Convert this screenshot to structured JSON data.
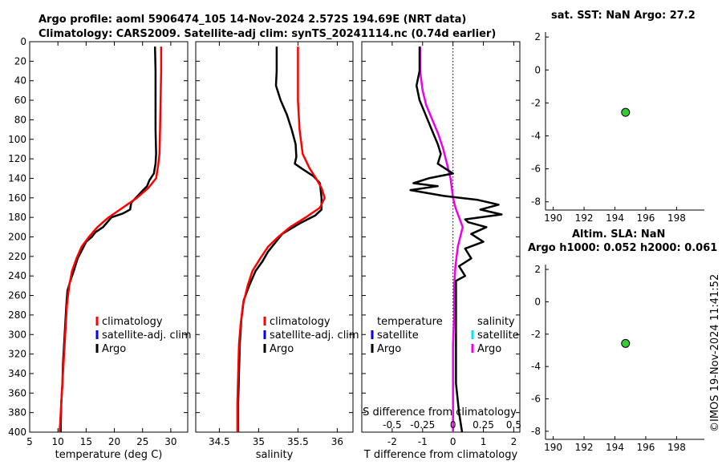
{
  "title_line1": "Argo profile: aoml 5906474_105 14-Nov-2024 2.572S 194.69E (NRT data)",
  "title_line2": "Climatology: CARS2009. Satellite-adj clim: synTS_20241114.nc (0.74d earlier)",
  "footer": "©IMOS 19-Nov-2024 11:41:52",
  "colors": {
    "climatology": "#ff0000",
    "satellite": "#0000ff",
    "satellite_s": "#00e5ee",
    "argo": "#000000",
    "argo_s": "#ee00ee",
    "dot": "#33cc33"
  },
  "chart_data": [
    {
      "id": "temperature",
      "type": "line",
      "xlabel": "temperature (deg C)",
      "ylabel": "",
      "xlim": [
        5,
        33
      ],
      "ylim": [
        400,
        0
      ],
      "xticks": [
        5,
        10,
        15,
        20,
        25,
        30
      ],
      "yticks": [
        0,
        20,
        40,
        60,
        80,
        100,
        120,
        140,
        160,
        180,
        200,
        220,
        240,
        260,
        280,
        300,
        320,
        340,
        360,
        380,
        400
      ],
      "legend": [
        "climatology",
        "satellite-adj. clim",
        "Argo"
      ],
      "series": [
        {
          "name": "climatology",
          "points": [
            [
              28.3,
              5
            ],
            [
              28.3,
              30
            ],
            [
              28.2,
              60
            ],
            [
              28.1,
              90
            ],
            [
              28.0,
              115
            ],
            [
              27.8,
              125
            ],
            [
              27.4,
              140
            ],
            [
              26,
              150
            ],
            [
              24,
              160
            ],
            [
              21.5,
              170
            ],
            [
              19,
              180
            ],
            [
              17,
              190
            ],
            [
              15.5,
              200
            ],
            [
              14.2,
              210
            ],
            [
              13.3,
              222
            ],
            [
              12.5,
              235
            ],
            [
              12,
              250
            ],
            [
              11.6,
              270
            ],
            [
              11.4,
              290
            ],
            [
              11.2,
              310
            ],
            [
              11,
              330
            ],
            [
              10.8,
              350
            ],
            [
              10.6,
              370
            ],
            [
              10.4,
              390
            ],
            [
              10.3,
              400
            ]
          ]
        },
        {
          "name": "Argo",
          "points": [
            [
              27.2,
              5
            ],
            [
              27.3,
              30
            ],
            [
              27.3,
              60
            ],
            [
              27.3,
              90
            ],
            [
              27.4,
              115
            ],
            [
              27.3,
              125
            ],
            [
              27,
              135
            ],
            [
              26.2,
              142
            ],
            [
              25.8,
              148
            ],
            [
              25.1,
              152
            ],
            [
              23.8,
              160
            ],
            [
              23,
              165
            ],
            [
              22.8,
              172
            ],
            [
              21.5,
              176
            ],
            [
              19.5,
              180
            ],
            [
              18,
              190
            ],
            [
              16.7,
              195
            ],
            [
              16,
              200
            ],
            [
              15,
              205
            ],
            [
              14.4,
              212
            ],
            [
              13.5,
              222
            ],
            [
              12.8,
              235
            ],
            [
              12.2,
              245
            ],
            [
              11.7,
              255
            ],
            [
              11.5,
              270
            ],
            [
              11.3,
              290
            ],
            [
              11.1,
              310
            ],
            [
              10.9,
              330
            ],
            [
              10.8,
              350
            ],
            [
              10.6,
              370
            ],
            [
              10.5,
              390
            ],
            [
              10.5,
              400
            ]
          ]
        }
      ]
    },
    {
      "id": "salinity",
      "type": "line",
      "xlabel": "salinity",
      "ylabel": "",
      "xlim": [
        34.2,
        36.2
      ],
      "ylim": [
        400,
        0
      ],
      "xticks": [
        34.5,
        35,
        35.5,
        36
      ],
      "xticklabels": [
        "34.5",
        "35",
        "35.5",
        "36"
      ],
      "legend": [
        "climatology",
        "satellite-adj. clim",
        "Argo"
      ],
      "series": [
        {
          "name": "climatology",
          "points": [
            [
              35.5,
              5
            ],
            [
              35.5,
              30
            ],
            [
              35.5,
              60
            ],
            [
              35.52,
              90
            ],
            [
              35.56,
              115
            ],
            [
              35.65,
              130
            ],
            [
              35.73,
              140
            ],
            [
              35.8,
              150
            ],
            [
              35.84,
              160
            ],
            [
              35.78,
              170
            ],
            [
              35.6,
              180
            ],
            [
              35.4,
              190
            ],
            [
              35.25,
              200
            ],
            [
              35.12,
              210
            ],
            [
              35.02,
              222
            ],
            [
              34.92,
              235
            ],
            [
              34.86,
              250
            ],
            [
              34.8,
              270
            ],
            [
              34.77,
              290
            ],
            [
              34.75,
              310
            ],
            [
              34.74,
              340
            ],
            [
              34.73,
              370
            ],
            [
              34.73,
              400
            ]
          ]
        },
        {
          "name": "Argo",
          "points": [
            [
              35.23,
              5
            ],
            [
              35.23,
              30
            ],
            [
              35.22,
              45
            ],
            [
              35.28,
              60
            ],
            [
              35.36,
              75
            ],
            [
              35.42,
              90
            ],
            [
              35.47,
              105
            ],
            [
              35.48,
              118
            ],
            [
              35.46,
              125
            ],
            [
              35.55,
              130
            ],
            [
              35.7,
              138
            ],
            [
              35.78,
              145
            ],
            [
              35.8,
              160
            ],
            [
              35.8,
              172
            ],
            [
              35.72,
              178
            ],
            [
              35.55,
              185
            ],
            [
              35.4,
              192
            ],
            [
              35.3,
              197
            ],
            [
              35.22,
              205
            ],
            [
              35.12,
              215
            ],
            [
              35.05,
              225
            ],
            [
              34.96,
              235
            ],
            [
              34.88,
              250
            ],
            [
              34.81,
              265
            ],
            [
              34.78,
              285
            ],
            [
              34.76,
              310
            ],
            [
              34.75,
              340
            ],
            [
              34.74,
              370
            ],
            [
              34.74,
              400
            ]
          ]
        }
      ]
    },
    {
      "id": "difference",
      "type": "line",
      "xlabel": "T difference from climatology",
      "xlabel_top": "S difference from climatology",
      "ylabel": "",
      "xlim": [
        -3,
        2.2
      ],
      "ylim": [
        400,
        0
      ],
      "xticks": [
        -2,
        -1,
        0,
        1,
        2
      ],
      "xticklabels": [
        "-2",
        "-1",
        "0",
        "1",
        "2"
      ],
      "s_xlim": [
        -0.75,
        0.55
      ],
      "s_xticks": [
        -0.5,
        -0.25,
        0,
        0.25,
        0.5
      ],
      "s_xticklabels": [
        "-0.5",
        "-0.25",
        "0",
        "0.25",
        "0.5"
      ],
      "legend_t_title": "temperature",
      "legend_s_title": "salinity",
      "legend": [
        "satellite",
        "Argo"
      ],
      "series": [
        {
          "name": "T Argo",
          "points": [
            [
              -1.1,
              5
            ],
            [
              -1.1,
              30
            ],
            [
              -1.2,
              45
            ],
            [
              -1.1,
              60
            ],
            [
              -0.9,
              75
            ],
            [
              -0.7,
              90
            ],
            [
              -0.5,
              105
            ],
            [
              -0.4,
              115
            ],
            [
              -0.5,
              125
            ],
            [
              0,
              135
            ],
            [
              -0.8,
              140
            ],
            [
              -1.3,
              145
            ],
            [
              -0.5,
              148
            ],
            [
              -1.4,
              152
            ],
            [
              -0.3,
              158
            ],
            [
              0.8,
              162
            ],
            [
              1.5,
              167
            ],
            [
              0.9,
              172
            ],
            [
              1.6,
              177
            ],
            [
              0.4,
              182
            ],
            [
              0.5,
              185
            ],
            [
              1.1,
              190
            ],
            [
              0.6,
              197
            ],
            [
              1,
              205
            ],
            [
              0.4,
              212
            ],
            [
              0.6,
              222
            ],
            [
              0.2,
              230
            ],
            [
              0.4,
              240
            ],
            [
              0.1,
              245
            ],
            [
              0.1,
              260
            ],
            [
              0.1,
              290
            ],
            [
              0.1,
              320
            ],
            [
              0.1,
              350
            ],
            [
              0.2,
              380
            ],
            [
              0.3,
              400
            ]
          ]
        },
        {
          "name": "S Argo",
          "points": [
            [
              -0.27,
              5
            ],
            [
              -0.27,
              30
            ],
            [
              -0.25,
              50
            ],
            [
              -0.22,
              65
            ],
            [
              -0.17,
              80
            ],
            [
              -0.12,
              95
            ],
            [
              -0.08,
              110
            ],
            [
              -0.05,
              125
            ],
            [
              -0.02,
              140
            ],
            [
              0,
              160
            ],
            [
              0.02,
              170
            ],
            [
              0.05,
              180
            ],
            [
              0.08,
              190
            ],
            [
              0.06,
              200
            ],
            [
              0.04,
              210
            ],
            [
              0.03,
              220
            ],
            [
              0.02,
              230
            ],
            [
              0.01,
              250
            ],
            [
              0.01,
              280
            ],
            [
              0,
              310
            ],
            [
              0,
              340
            ],
            [
              0,
              370
            ],
            [
              0,
              400
            ]
          ]
        }
      ]
    },
    {
      "id": "sst",
      "type": "scatter",
      "title": "sat. SST: NaN Argo: 27.2",
      "xlim": [
        189.5,
        199.8
      ],
      "ylim": [
        -8.5,
        2.3
      ],
      "xticks": [
        190,
        192,
        194,
        196,
        198
      ],
      "yticks": [
        2,
        0,
        -2,
        -4,
        -6,
        -8
      ],
      "points": [
        [
          194.69,
          -2.572
        ]
      ]
    },
    {
      "id": "sla",
      "type": "scatter",
      "title": "Altim. SLA: NaN",
      "subtitle": "Argo h1000: 0.052 h2000: 0.061",
      "xlim": [
        189.5,
        199.8
      ],
      "ylim": [
        -8.5,
        2.3
      ],
      "xticks": [
        190,
        192,
        194,
        196,
        198
      ],
      "yticks": [
        2,
        0,
        -2,
        -4,
        -6,
        -8
      ],
      "points": [
        [
          194.69,
          -2.572
        ]
      ]
    }
  ]
}
